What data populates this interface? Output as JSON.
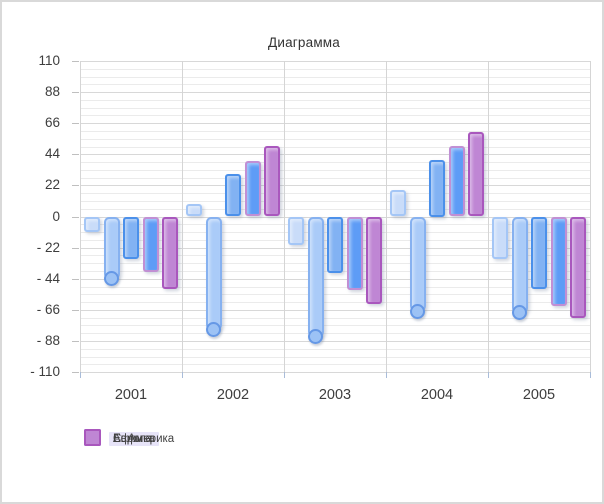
{
  "chart_data": {
    "type": "bar",
    "title": "Диаграмма",
    "categories": [
      "2001",
      "2002",
      "2003",
      "2004",
      "2005"
    ],
    "y_axis": {
      "min": -110,
      "max": 110,
      "major_step": 22,
      "minor_divisions": 4,
      "tick_labels": [
        "110",
        "88",
        "66",
        "44",
        "22",
        "0",
        "- 22",
        "- 44",
        "- 66",
        "- 88",
        "- 110"
      ]
    },
    "legend_position": "bottom",
    "series": [
      {
        "key": "asia",
        "name": "Азия",
        "in_legend": true,
        "selected": false,
        "handle": false,
        "values": [
          -11,
          9,
          -20,
          19,
          -30
        ],
        "fill": "#c9dcf9",
        "border": "#a4c6f6"
      },
      {
        "key": "unlabeled",
        "name": "",
        "in_legend": false,
        "selected": true,
        "handle": true,
        "values": [
          -44,
          -80,
          -85,
          -67,
          -68
        ],
        "fill": "#aacbf8",
        "border": "#86b1f0",
        "handle_fill": "#9cc2f5",
        "handle_border": "#6598e6"
      },
      {
        "key": "africa",
        "name": "Африка",
        "in_legend": true,
        "selected": true,
        "handle": false,
        "values": [
          -30,
          30,
          -40,
          40,
          -51
        ],
        "fill": "#82b2f3",
        "border": "#4b90ea"
      },
      {
        "key": "europe",
        "name": "Европа",
        "in_legend": true,
        "selected": false,
        "handle": false,
        "values": [
          -39,
          39,
          -52,
          50,
          -63
        ],
        "fill": "#5e9cf6",
        "border": "#c18fd4"
      },
      {
        "key": "n-america",
        "name": "С. Америка",
        "in_legend": true,
        "selected": false,
        "handle": false,
        "values": [
          -51,
          50,
          -62,
          60,
          -72
        ],
        "fill": "#bf86d4",
        "border": "#a957bd"
      }
    ],
    "colors": {
      "h_major_grid": "#d8d8d8",
      "h_minor_grid": "#ebebeb",
      "v_grid": "#d5d5d5",
      "y_tick": "#bfbfbf",
      "x_tick": "#a9bcd9",
      "text": "#3d3d3d",
      "legend_selected_bg": "#e7e4f8"
    }
  }
}
